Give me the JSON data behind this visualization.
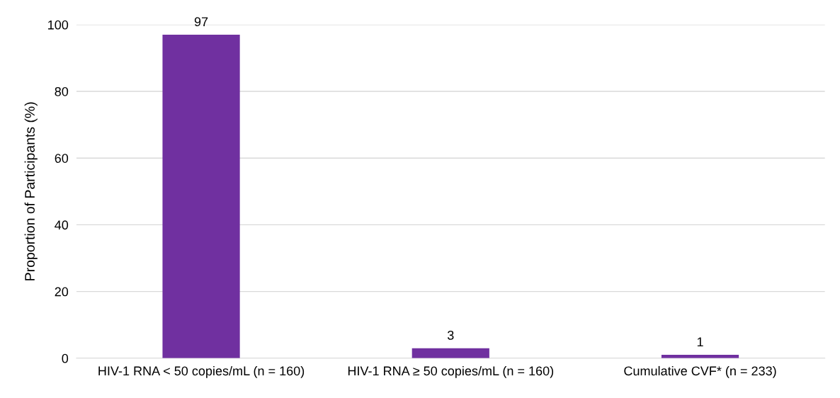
{
  "chart_data": {
    "type": "bar",
    "ylabel": "Proportion of Participants (%)",
    "categories": [
      "HIV-1 RNA < 50 copies/mL (n = 160)",
      "HIV-1 RNA ≥ 50 copies/mL (n = 160)",
      "Cumulative CVF* (n = 233)"
    ],
    "values": [
      97,
      3,
      1
    ],
    "color": "#7030a0",
    "ylim": [
      0,
      100
    ],
    "yticks": [
      0,
      20,
      40,
      60,
      80,
      100
    ],
    "grid": "y",
    "data_labels": true
  }
}
